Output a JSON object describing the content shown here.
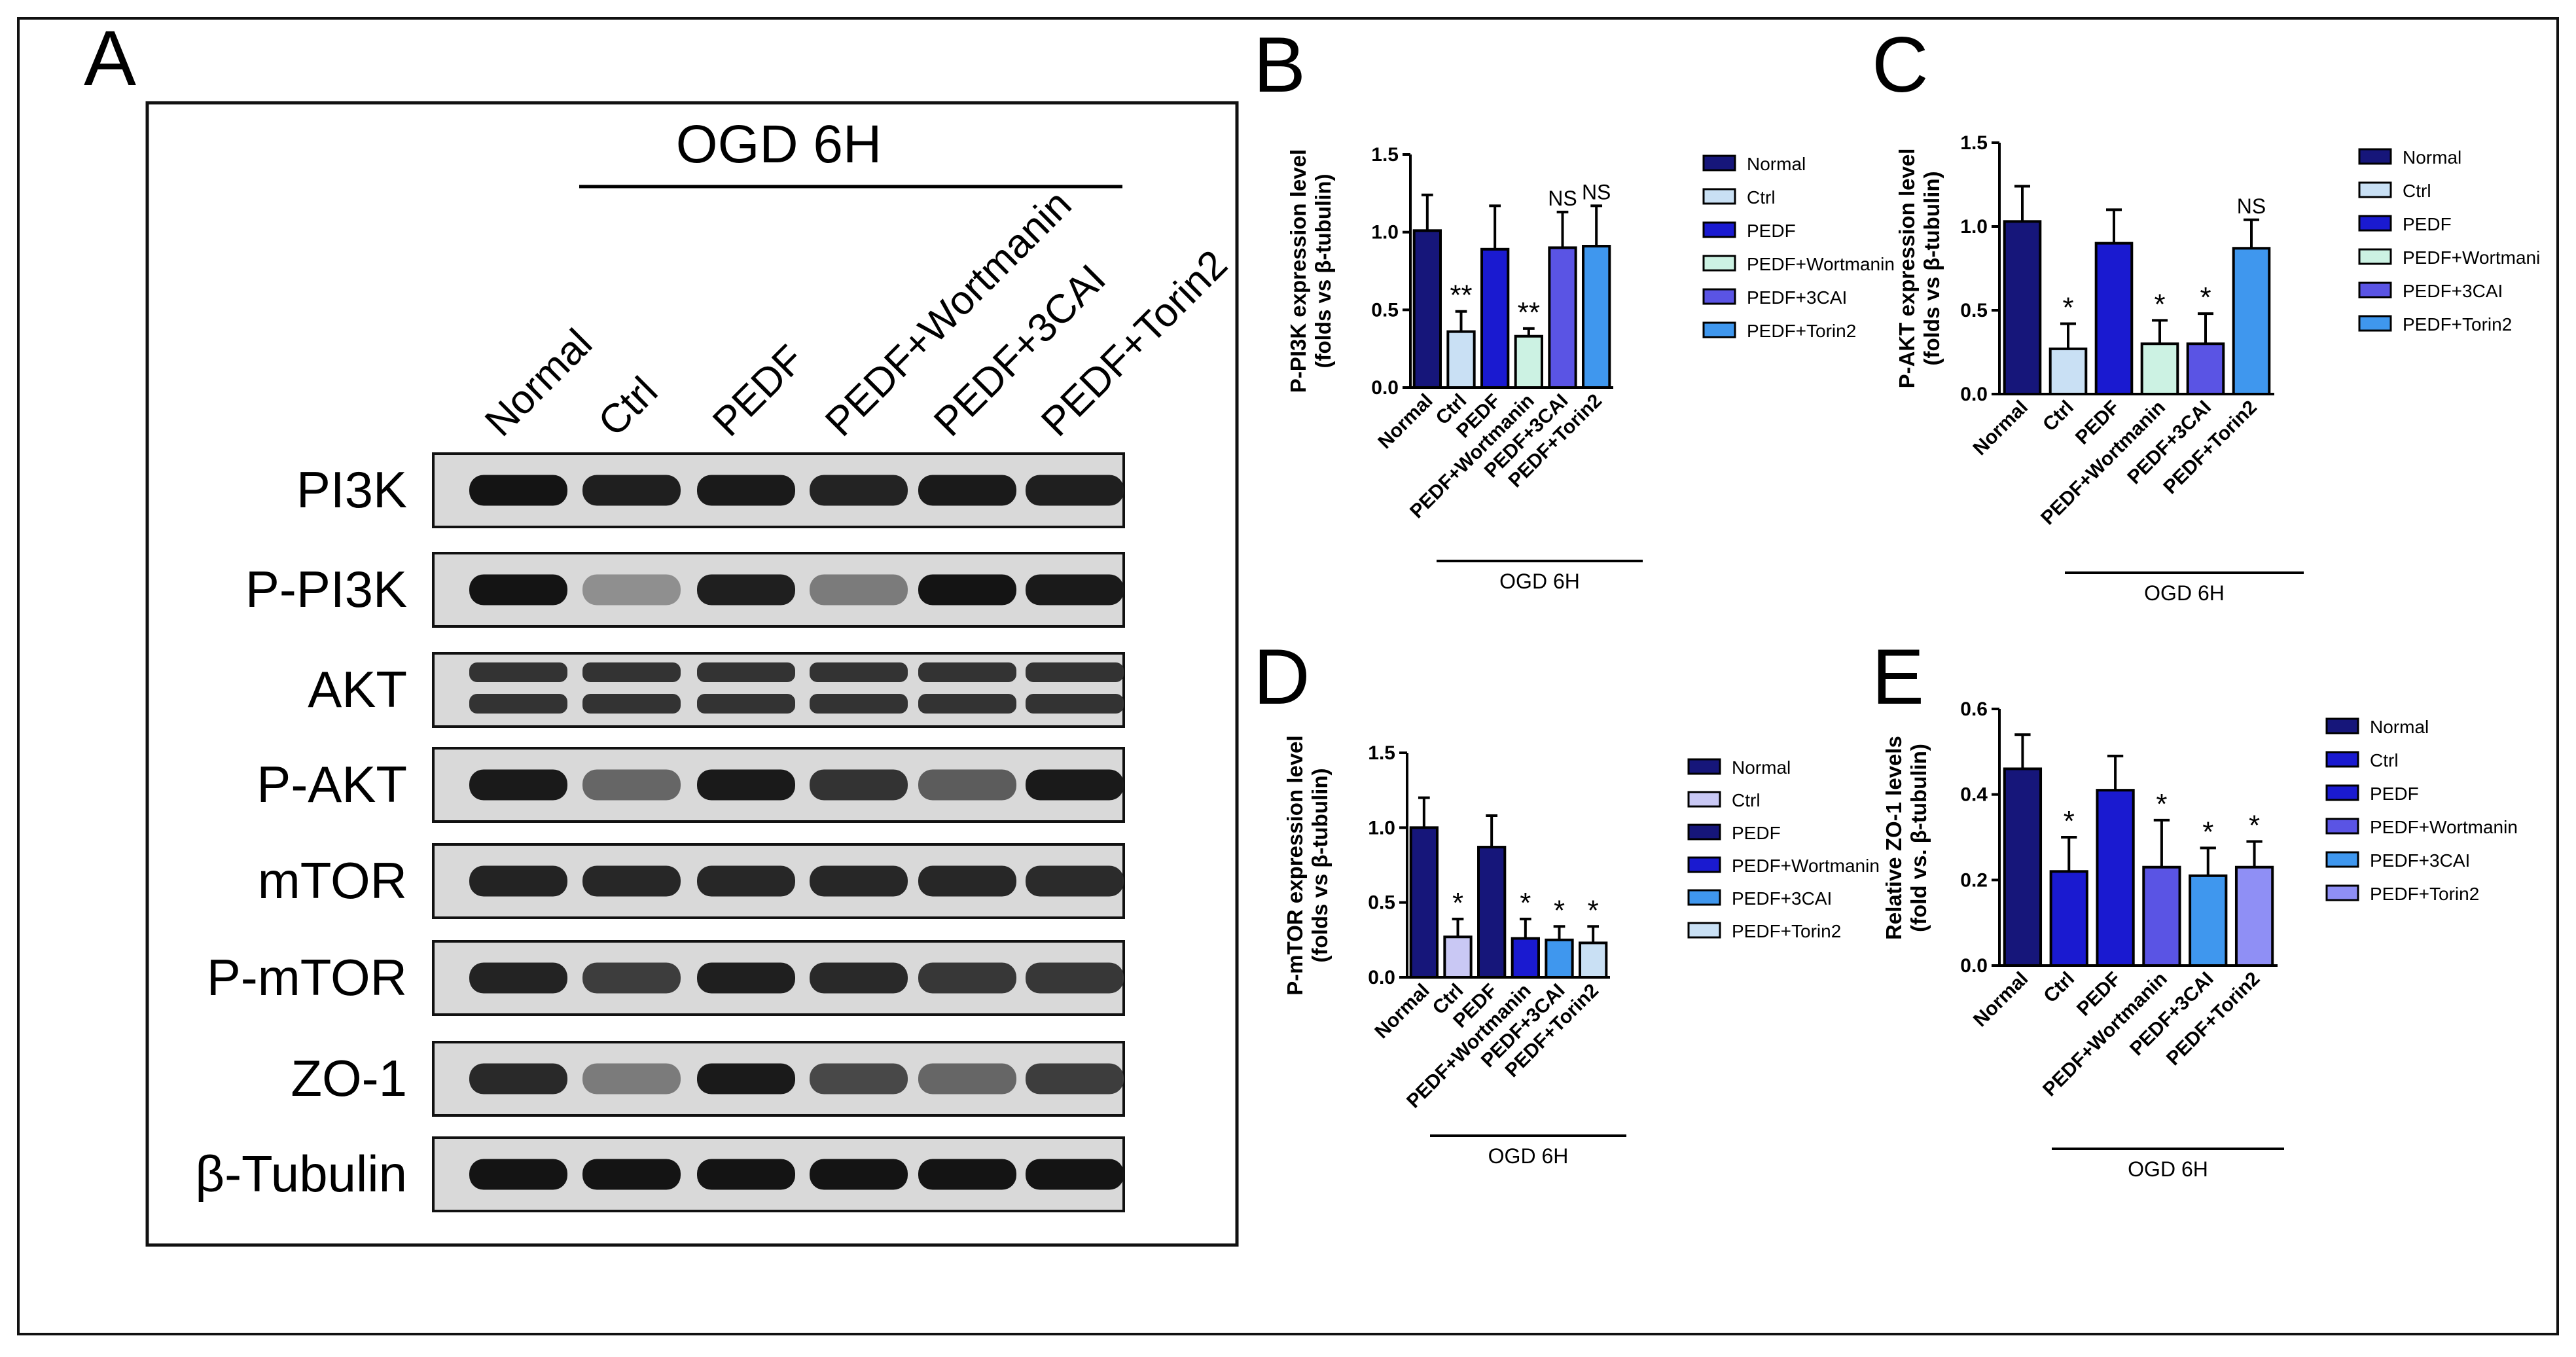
{
  "panel_letters": {
    "a": "A",
    "b": "B",
    "c": "C",
    "d": "D",
    "e": "E"
  },
  "blot": {
    "header": "OGD  6H",
    "lane_labels": [
      "Normal",
      "Ctrl",
      "PEDF",
      "PEDF+Wortmanin",
      "PEDF+3CAI",
      "PEDF+Torin2"
    ],
    "rows": [
      {
        "label": "PI3K",
        "intensity": [
          0.95,
          0.9,
          0.92,
          0.88,
          0.92,
          0.9
        ]
      },
      {
        "label": "P-PI3K",
        "intensity": [
          0.95,
          0.35,
          0.9,
          0.45,
          0.95,
          0.92
        ]
      },
      {
        "label": "AKT",
        "intensity": [
          0.8,
          0.8,
          0.8,
          0.8,
          0.8,
          0.8
        ]
      },
      {
        "label": "P-AKT",
        "intensity": [
          0.92,
          0.55,
          0.92,
          0.8,
          0.6,
          0.92
        ]
      },
      {
        "label": "mTOR",
        "intensity": [
          0.88,
          0.86,
          0.86,
          0.86,
          0.86,
          0.84
        ]
      },
      {
        "label": "P-mTOR",
        "intensity": [
          0.88,
          0.75,
          0.9,
          0.85,
          0.78,
          0.78
        ]
      },
      {
        "label": "ZO-1",
        "intensity": [
          0.85,
          0.45,
          0.92,
          0.7,
          0.55,
          0.75
        ]
      },
      {
        "label": "β-Tubulin",
        "intensity": [
          0.95,
          0.95,
          0.95,
          0.95,
          0.95,
          0.95
        ]
      }
    ]
  },
  "chart_data": [
    {
      "panel": "B",
      "type": "bar",
      "ylabel": "P-PI3K expression level\n(folds vs β-tubulin)",
      "xgroup_label": "OGD 6H",
      "categories": [
        "Normal",
        "Ctrl",
        "PEDF",
        "PEDF+Wortmanin",
        "PEDF+3CAI",
        "PEDF+Torin2"
      ],
      "legend": [
        "Normal",
        "Ctrl",
        "PEDF",
        "PEDF+Wortmanin",
        "PEDF+3CAI",
        "PEDF+Torin2"
      ],
      "values": [
        1.01,
        0.36,
        0.89,
        0.33,
        0.9,
        0.91
      ],
      "errors": [
        0.23,
        0.13,
        0.28,
        0.05,
        0.23,
        0.26
      ],
      "significance": [
        "",
        "**",
        "",
        "**",
        "NS",
        "NS"
      ],
      "colors": [
        "#16167a",
        "#c9e0f4",
        "#1a1ad0",
        "#ccf2e3",
        "#5a54e4",
        "#3f97ee"
      ],
      "ylim": [
        0,
        1.5
      ],
      "yticks": [
        0,
        0.5,
        1.0,
        1.5
      ],
      "ytick_labels": [
        "0.0",
        "0.5",
        "1.0",
        "1.5"
      ]
    },
    {
      "panel": "C",
      "type": "bar",
      "ylabel": "P-AKT expression level\n(folds vs β-tubulin)",
      "xgroup_label": "OGD 6H",
      "categories": [
        "Normal",
        "Ctrl",
        "PEDF",
        "PEDF+Wortmanin",
        "PEDF+3CAI",
        "PEDF+Torin2"
      ],
      "legend": [
        "Normal",
        "Ctrl",
        "PEDF",
        "PEDF+Wortmani",
        "PEDF+3CAI",
        "PEDF+Torin2"
      ],
      "values": [
        1.03,
        0.27,
        0.9,
        0.3,
        0.3,
        0.87
      ],
      "errors": [
        0.21,
        0.15,
        0.2,
        0.14,
        0.18,
        0.17
      ],
      "significance": [
        "",
        "*",
        "",
        "*",
        "*",
        "NS"
      ],
      "colors": [
        "#16167a",
        "#c9e0f4",
        "#1a1ad0",
        "#ccf2e3",
        "#5a54e4",
        "#3f97ee"
      ],
      "ylim": [
        0,
        1.5
      ],
      "yticks": [
        0,
        0.5,
        1.0,
        1.5
      ],
      "ytick_labels": [
        "0.0",
        "0.5",
        "1.0",
        "1.5"
      ]
    },
    {
      "panel": "D",
      "type": "bar",
      "ylabel": "P-mTOR expression level\n(folds vs β-tubulin)",
      "xgroup_label": "OGD 6H",
      "categories": [
        "Normal",
        "Ctrl",
        "PEDF",
        "PEDF+Wortmanin",
        "PEDF+3CAI",
        "PEDF+Torin2"
      ],
      "legend": [
        "Normal",
        "Ctrl",
        "PEDF",
        "PEDF+Wortmanin",
        "PEDF+3CAI",
        "PEDF+Torin2"
      ],
      "values": [
        1.0,
        0.27,
        0.87,
        0.26,
        0.25,
        0.23
      ],
      "errors": [
        0.2,
        0.12,
        0.21,
        0.13,
        0.09,
        0.11
      ],
      "significance": [
        "",
        "*",
        "",
        "*",
        "*",
        "*"
      ],
      "colors": [
        "#16167a",
        "#c9c8f4",
        "#16167a",
        "#1a1ad0",
        "#3f97ee",
        "#c9e0f4"
      ],
      "ylim": [
        0,
        1.5
      ],
      "yticks": [
        0,
        0.5,
        1.0,
        1.5
      ],
      "ytick_labels": [
        "0.0",
        "0.5",
        "1.0",
        "1.5"
      ]
    },
    {
      "panel": "E",
      "type": "bar",
      "ylabel": "Relative ZO-1 levels\n(fold vs. β-tubulin)",
      "xgroup_label": "OGD 6H",
      "categories": [
        "Normal",
        "Ctrl",
        "PEDF",
        "PEDF+Wortmanin",
        "PEDF+3CAI",
        "PEDF+Torin2"
      ],
      "legend": [
        "Normal",
        "Ctrl",
        "PEDF",
        "PEDF+Wortmanin",
        "PEDF+3CAI",
        "PEDF+Torin2"
      ],
      "values": [
        0.46,
        0.22,
        0.41,
        0.23,
        0.21,
        0.23
      ],
      "errors": [
        0.08,
        0.08,
        0.08,
        0.11,
        0.065,
        0.06
      ],
      "significance": [
        "",
        "*",
        "",
        "*",
        "*",
        "*"
      ],
      "colors": [
        "#16167a",
        "#1a1ad0",
        "#1a1ad0",
        "#5a54e4",
        "#3f97ee",
        "#8f8ff5"
      ],
      "ylim": [
        0,
        0.6
      ],
      "yticks": [
        0,
        0.2,
        0.4,
        0.6
      ],
      "ytick_labels": [
        "0.0",
        "0.2",
        "0.4",
        "0.6"
      ]
    }
  ]
}
